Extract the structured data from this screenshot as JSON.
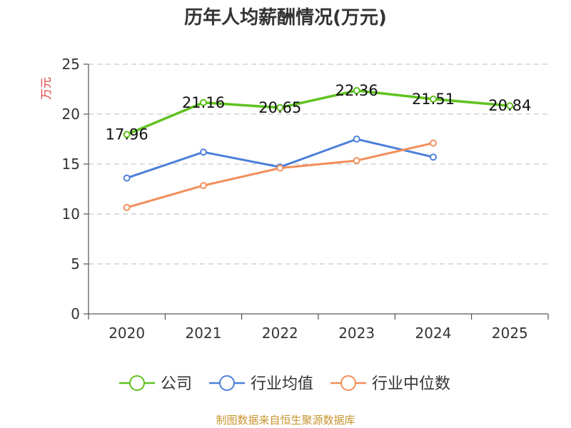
{
  "chart_data": {
    "type": "line",
    "title": "历年人均薪酬情况(万元)",
    "ylabel": "万元",
    "xlabel": "",
    "categories": [
      "2020",
      "2021",
      "2022",
      "2023",
      "2024",
      "2025"
    ],
    "ylim": [
      0,
      25
    ],
    "yticks": [
      0,
      5,
      10,
      15,
      20,
      25
    ],
    "grid": true,
    "legend_position": "bottom",
    "series": [
      {
        "name": "公司",
        "color": "#5fc220",
        "values": [
          17.96,
          21.16,
          20.65,
          22.36,
          21.51,
          20.84
        ],
        "labels": [
          "17.96",
          "21.16",
          "20.65",
          "22.36",
          "21.51",
          "20.84"
        ]
      },
      {
        "name": "行业均值",
        "color": "#4d80d9",
        "values": [
          13.6,
          16.2,
          14.7,
          17.5,
          15.7,
          null
        ]
      },
      {
        "name": "行业中位数",
        "color": "#f28e5a",
        "values": [
          10.65,
          12.85,
          14.6,
          15.35,
          17.1,
          null
        ]
      }
    ]
  },
  "footer": {
    "source": "制图数据来自恒生聚源数据库"
  },
  "colors": {
    "axis": "#333333",
    "grid": "#bbbbbb",
    "ylabel": "#e03c3c",
    "footer": "#c8952f"
  }
}
